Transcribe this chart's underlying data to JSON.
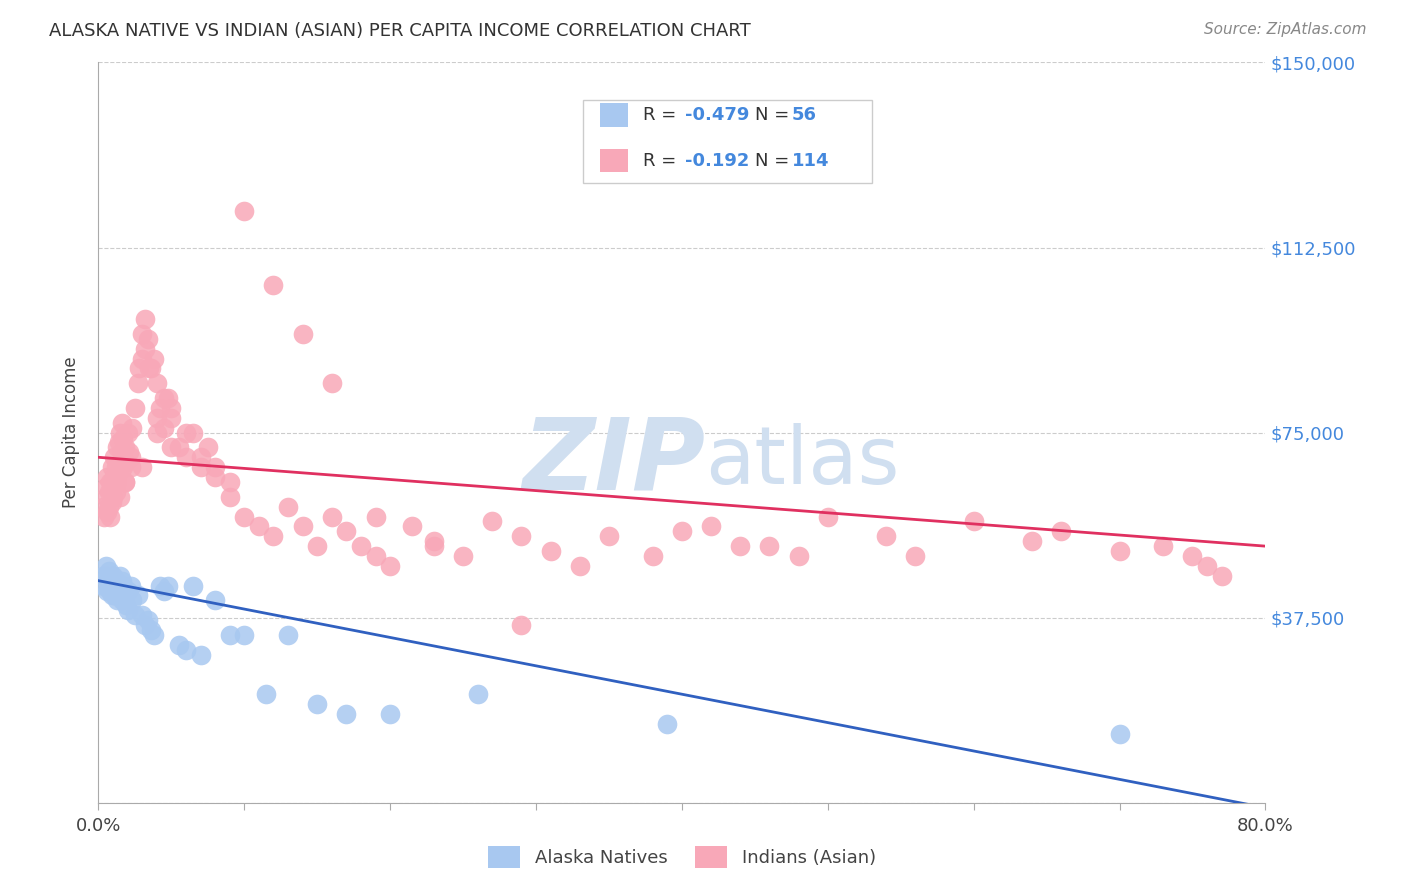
{
  "title": "ALASKA NATIVE VS INDIAN (ASIAN) PER CAPITA INCOME CORRELATION CHART",
  "source": "Source: ZipAtlas.com",
  "ylabel": "Per Capita Income",
  "yticks": [
    0,
    37500,
    75000,
    112500,
    150000
  ],
  "ytick_labels": [
    "",
    "$37,500",
    "$75,000",
    "$112,500",
    "$150,000"
  ],
  "xmin": 0.0,
  "xmax": 0.8,
  "ymin": 0,
  "ymax": 150000,
  "label1": "Alaska Natives",
  "label2": "Indians (Asian)",
  "color_blue": "#A8C8F0",
  "color_pink": "#F8A8B8",
  "line_color_blue": "#3060C0",
  "line_color_pink": "#E03060",
  "watermark_color": "#D0DFF0",
  "blue_line_x0": 0.0,
  "blue_line_x1": 0.8,
  "blue_line_y0": 45000,
  "blue_line_y1": -1000,
  "pink_line_x0": 0.0,
  "pink_line_x1": 0.8,
  "pink_line_y0": 70000,
  "pink_line_y1": 52000,
  "blue_scatter_x": [
    0.003,
    0.004,
    0.005,
    0.006,
    0.006,
    0.007,
    0.007,
    0.008,
    0.008,
    0.009,
    0.009,
    0.01,
    0.01,
    0.011,
    0.011,
    0.012,
    0.012,
    0.013,
    0.013,
    0.014,
    0.015,
    0.015,
    0.016,
    0.016,
    0.017,
    0.018,
    0.019,
    0.02,
    0.02,
    0.022,
    0.023,
    0.025,
    0.027,
    0.03,
    0.032,
    0.034,
    0.036,
    0.038,
    0.042,
    0.045,
    0.048,
    0.055,
    0.06,
    0.065,
    0.07,
    0.08,
    0.09,
    0.1,
    0.115,
    0.13,
    0.15,
    0.17,
    0.2,
    0.26,
    0.39,
    0.7
  ],
  "blue_scatter_y": [
    46000,
    44000,
    48000,
    43000,
    46000,
    44000,
    47000,
    43000,
    45000,
    44000,
    42000,
    46000,
    43000,
    44000,
    42000,
    43000,
    45000,
    41000,
    44000,
    42000,
    46000,
    43000,
    45000,
    41000,
    44000,
    42000,
    40000,
    43000,
    39000,
    44000,
    41000,
    38000,
    42000,
    38000,
    36000,
    37000,
    35000,
    34000,
    44000,
    43000,
    44000,
    32000,
    31000,
    44000,
    30000,
    41000,
    34000,
    34000,
    22000,
    34000,
    20000,
    18000,
    18000,
    22000,
    16000,
    14000
  ],
  "pink_scatter_x": [
    0.003,
    0.004,
    0.005,
    0.005,
    0.006,
    0.006,
    0.007,
    0.007,
    0.008,
    0.008,
    0.009,
    0.009,
    0.01,
    0.01,
    0.011,
    0.011,
    0.012,
    0.012,
    0.013,
    0.013,
    0.014,
    0.014,
    0.015,
    0.015,
    0.016,
    0.016,
    0.017,
    0.017,
    0.018,
    0.018,
    0.019,
    0.02,
    0.021,
    0.022,
    0.023,
    0.025,
    0.027,
    0.028,
    0.03,
    0.032,
    0.034,
    0.036,
    0.038,
    0.04,
    0.042,
    0.045,
    0.048,
    0.05,
    0.055,
    0.06,
    0.065,
    0.07,
    0.075,
    0.08,
    0.09,
    0.1,
    0.11,
    0.12,
    0.13,
    0.14,
    0.15,
    0.16,
    0.17,
    0.18,
    0.19,
    0.2,
    0.215,
    0.23,
    0.25,
    0.27,
    0.29,
    0.31,
    0.33,
    0.35,
    0.38,
    0.42,
    0.46,
    0.5,
    0.54,
    0.56,
    0.6,
    0.64,
    0.66,
    0.7,
    0.73,
    0.75,
    0.76,
    0.77,
    0.4,
    0.44,
    0.48,
    0.29,
    0.015,
    0.018,
    0.022,
    0.03,
    0.04,
    0.05,
    0.03,
    0.032,
    0.035,
    0.04,
    0.045,
    0.05,
    0.06,
    0.07,
    0.08,
    0.09,
    0.1,
    0.12,
    0.14,
    0.16,
    0.19,
    0.23
  ],
  "pink_scatter_y": [
    60000,
    58000,
    62000,
    64000,
    59000,
    66000,
    60000,
    63000,
    58000,
    65000,
    61000,
    68000,
    62000,
    64000,
    66000,
    70000,
    63000,
    68000,
    65000,
    72000,
    67000,
    73000,
    69000,
    75000,
    71000,
    77000,
    68000,
    74000,
    65000,
    72000,
    69000,
    75000,
    71000,
    68000,
    76000,
    80000,
    85000,
    88000,
    90000,
    92000,
    94000,
    88000,
    90000,
    78000,
    80000,
    76000,
    82000,
    80000,
    72000,
    70000,
    75000,
    68000,
    72000,
    66000,
    62000,
    58000,
    56000,
    54000,
    60000,
    56000,
    52000,
    58000,
    55000,
    52000,
    50000,
    48000,
    56000,
    53000,
    50000,
    57000,
    54000,
    51000,
    48000,
    54000,
    50000,
    56000,
    52000,
    58000,
    54000,
    50000,
    57000,
    53000,
    55000,
    51000,
    52000,
    50000,
    48000,
    46000,
    55000,
    52000,
    50000,
    36000,
    62000,
    65000,
    70000,
    68000,
    75000,
    72000,
    95000,
    98000,
    88000,
    85000,
    82000,
    78000,
    75000,
    70000,
    68000,
    65000,
    120000,
    105000,
    95000,
    85000,
    58000,
    52000
  ],
  "legend_all_blue": "#3060C0",
  "legend_all_pink": "#E03060",
  "title_fontsize": 13,
  "source_fontsize": 11
}
